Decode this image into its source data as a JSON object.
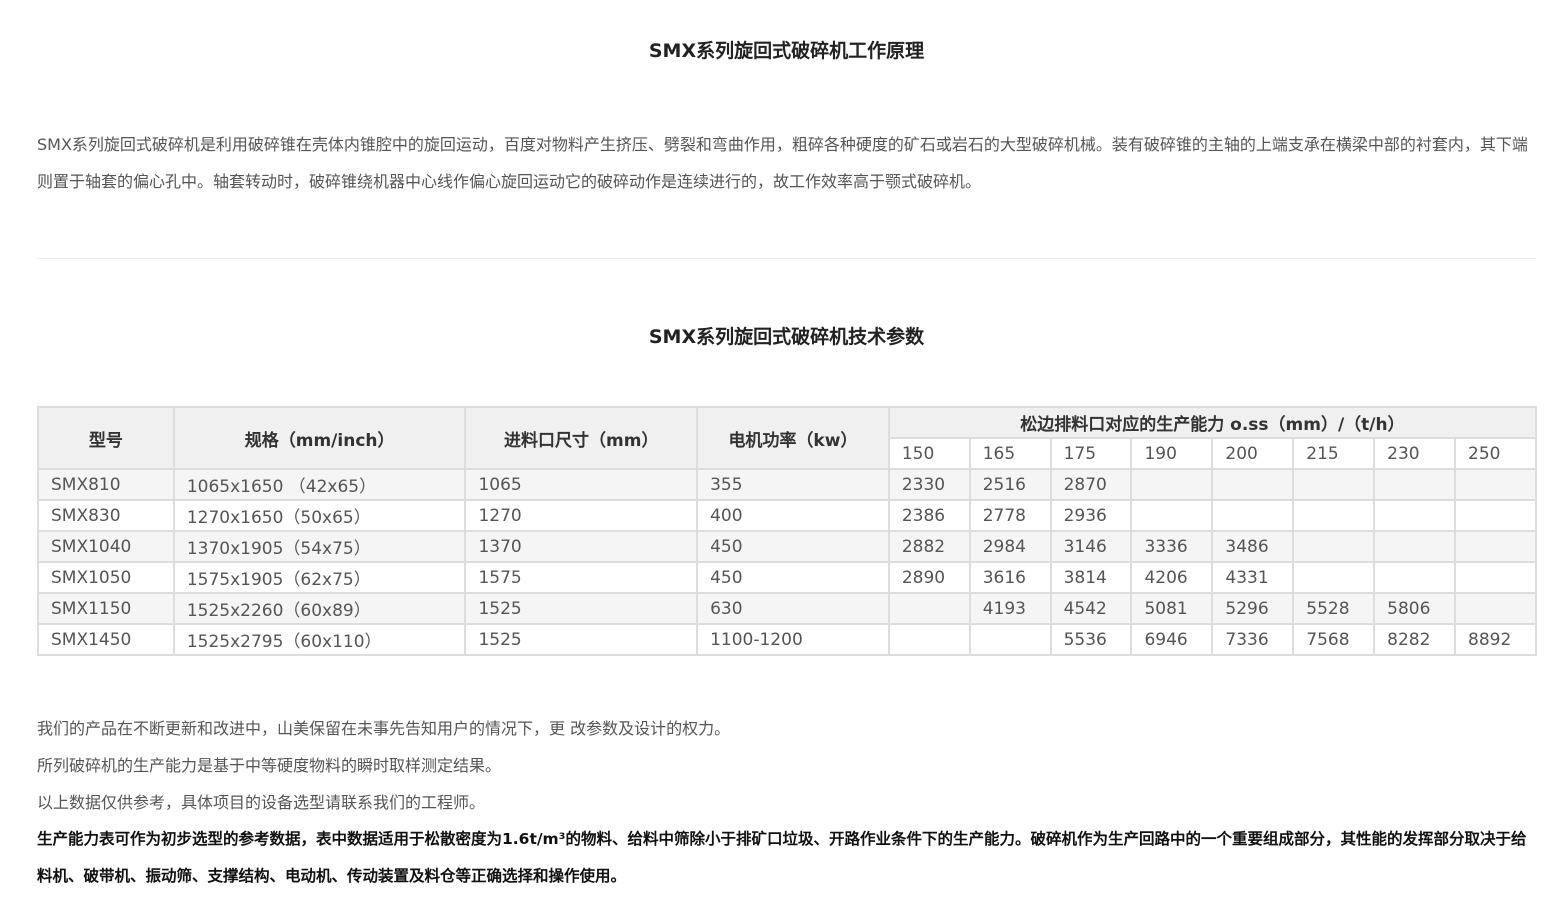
{
  "section1": {
    "title": "SMX系列旋回式破碎机工作原理",
    "body": "SMX系列旋回式破碎机是利用破碎锥在壳体内锥腔中的旋回运动，百度对物料产生挤压、劈裂和弯曲作用，粗碎各种硬度的矿石或岩石的大型破碎机械。装有破碎锥的主轴的上端支承在横梁中部的衬套内，其下端则置于轴套的偏心孔中。轴套转动时，破碎锥绕机器中心线作偏心旋回运动它的破碎动作是连续进行的，故工作效率高于颚式破碎机。"
  },
  "section2": {
    "title": "SMX系列旋回式破碎机技术参数"
  },
  "table": {
    "headers": [
      "型号",
      "规格（mm/inch）",
      "进料口尺寸（mm）",
      "电机功率（kw）"
    ],
    "capacity_header": "松边排料口对应的生产能力  o.ss（mm）/（t/h）",
    "capacity_cols": [
      "150",
      "165",
      "175",
      "190",
      "200",
      "215",
      "230",
      "250"
    ],
    "rows": [
      [
        "SMX810",
        "1065x1650 （42x65）",
        "1065",
        "355",
        "2330",
        "2516",
        "2870",
        "",
        "",
        "",
        "",
        ""
      ],
      [
        "SMX830",
        "1270x1650（50x65）",
        "1270",
        "400",
        "2386",
        "2778",
        "2936",
        "",
        "",
        "",
        "",
        ""
      ],
      [
        "SMX1040",
        "1370x1905（54x75）",
        "1370",
        "450",
        "2882",
        "2984",
        "3146",
        "3336",
        "3486",
        "",
        "",
        ""
      ],
      [
        "SMX1050",
        "1575x1905（62x75）",
        "1575",
        "450",
        "2890",
        "3616",
        "3814",
        "4206",
        "4331",
        "",
        "",
        ""
      ],
      [
        "SMX1150",
        "1525x2260（60x89）",
        "1525",
        "630",
        "",
        "4193",
        "4542",
        "5081",
        "5296",
        "5528",
        "5806",
        ""
      ],
      [
        "SMX1450",
        "1525x2795（60x110）",
        "1525",
        "1100-1200",
        "",
        "",
        "5536",
        "6946",
        "7336",
        "7568",
        "8282",
        "8892"
      ]
    ]
  },
  "notes": [
    "我们的产品在不断更新和改进中，山美保留在未事先告知用户的情况下，更 改参数及设计的权力。",
    "所列破碎机的生产能力是基于中等硬度物料的瞬时取样测定结果。",
    "以上数据仅供参考，具体项目的设备选型请联系我们的工程师。"
  ],
  "bold_note": "生产能力表可作为初步选型的参考数据，表中数据适用于松散密度为1.6t/m³的物料、给料中筛除小于排矿口垃圾、开路作业条件下的生产能力。破碎机作为生产回路中的一个重要组成部分，其性能的发挥部分取决于给料机、破带机、振动筛、支撑结构、电动机、传动装置及料仓等正确选择和操作使用。"
}
